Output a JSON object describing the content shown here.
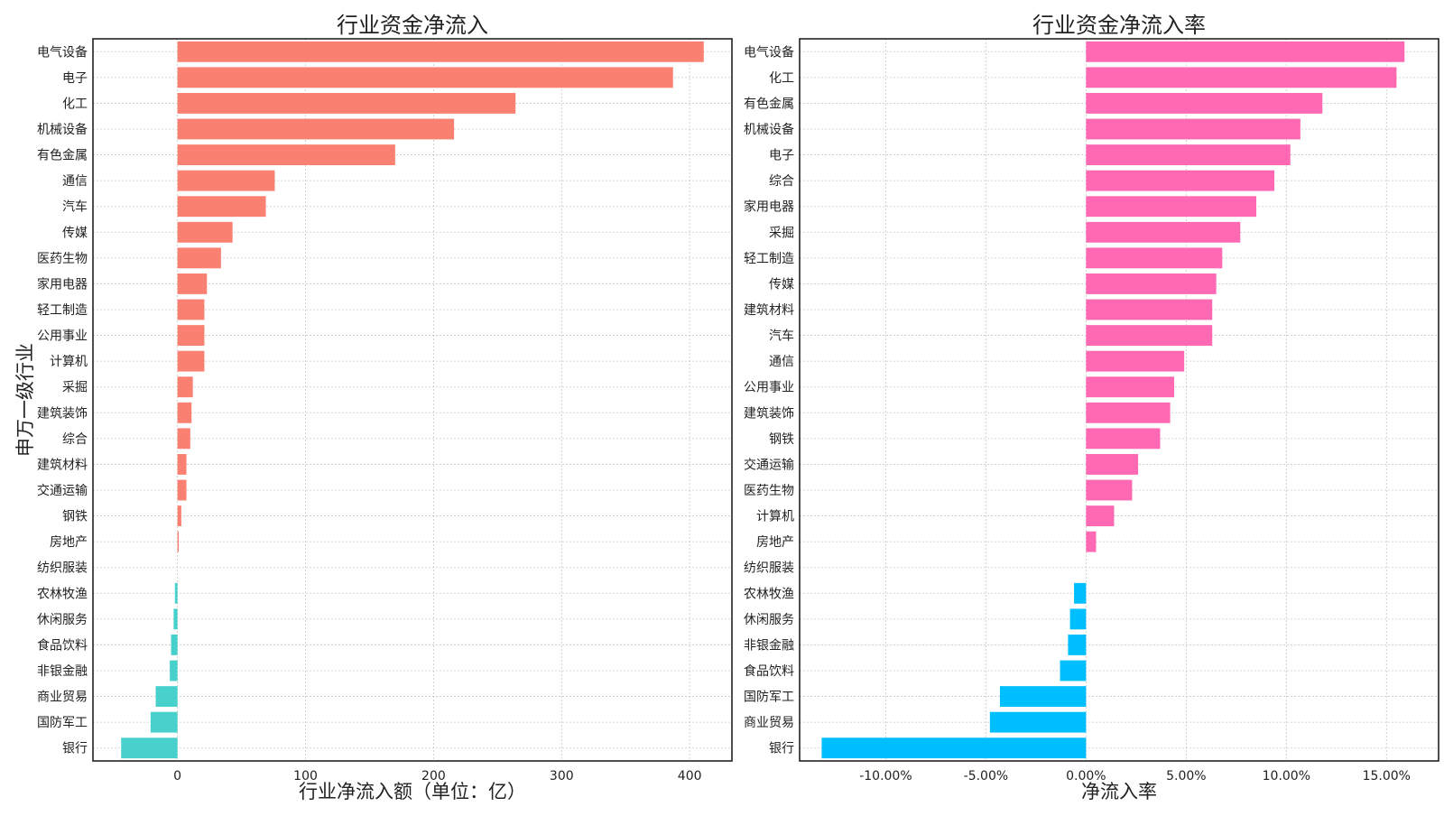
{
  "chart_data": [
    {
      "type": "bar",
      "orientation": "horizontal",
      "title": "行业资金净流入",
      "xlabel": "行业净流入额（单位：亿）",
      "ylabel": "申万一级行业",
      "xticks": [
        "0",
        "100",
        "200",
        "300",
        "400"
      ],
      "xlim": [
        -66,
        433
      ],
      "grid": true,
      "positive_color": "#fa8072",
      "negative_color": "#48d1cc",
      "categories": [
        "电气设备",
        "电子",
        "化工",
        "机械设备",
        "有色金属",
        "通信",
        "汽车",
        "传媒",
        "医药生物",
        "家用电器",
        "轻工制造",
        "公用事业",
        "计算机",
        "采掘",
        "建筑装饰",
        "综合",
        "建筑材料",
        "交通运输",
        "钢铁",
        "房地产",
        "纺织服装",
        "农林牧渔",
        "休闲服务",
        "食品饮料",
        "非银金融",
        "商业贸易",
        "国防军工",
        "银行"
      ],
      "values": [
        411,
        387,
        264,
        216,
        170,
        76,
        69,
        43,
        34,
        23,
        21,
        21,
        21,
        12,
        11,
        10,
        7,
        7,
        3,
        1,
        0,
        -2,
        -3,
        -5,
        -6,
        -17,
        -21,
        -44
      ]
    },
    {
      "type": "bar",
      "orientation": "horizontal",
      "title": "行业资金净流入率",
      "xlabel": "净流入率",
      "xticks": [
        "-10.00%",
        "-5.00%",
        "0.00%",
        "5.00%",
        "10.00%",
        "15.00%"
      ],
      "xlim": [
        -14.3,
        17.6
      ],
      "grid": true,
      "positive_color": "#ff69b4",
      "negative_color": "#00bfff",
      "categories": [
        "电气设备",
        "化工",
        "有色金属",
        "机械设备",
        "电子",
        "综合",
        "家用电器",
        "采掘",
        "轻工制造",
        "传媒",
        "建筑材料",
        "汽车",
        "通信",
        "公用事业",
        "建筑装饰",
        "钢铁",
        "交通运输",
        "医药生物",
        "计算机",
        "房地产",
        "纺织服装",
        "农林牧渔",
        "休闲服务",
        "非银金融",
        "食品饮料",
        "国防军工",
        "商业贸易",
        "银行"
      ],
      "values": [
        15.9,
        15.5,
        11.8,
        10.7,
        10.2,
        9.4,
        8.5,
        7.7,
        6.8,
        6.5,
        6.3,
        6.3,
        4.9,
        4.4,
        4.2,
        3.7,
        2.6,
        2.3,
        1.4,
        0.5,
        0.0,
        -0.6,
        -0.8,
        -0.9,
        -1.3,
        -4.3,
        -4.8,
        -13.2
      ]
    }
  ]
}
